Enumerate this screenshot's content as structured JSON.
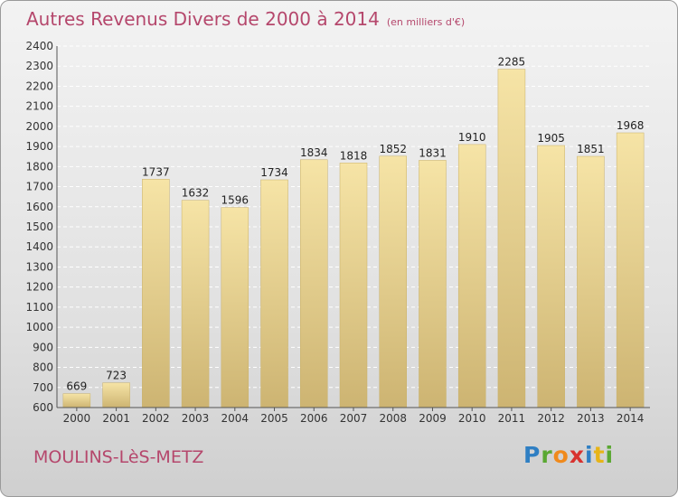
{
  "header": {
    "title": "Autres Revenus Divers de 2000 à 2014",
    "subtitle": "(en milliers d'€)"
  },
  "footer": {
    "city": "MOULINS-LèS-METZ",
    "logo_letters": [
      "P",
      "r",
      "o",
      "x",
      "i",
      "t",
      "i"
    ],
    "logo_colors": [
      "#2f7fc3",
      "#5aa832",
      "#f08a1c",
      "#d8322f",
      "#2f7fc3",
      "#e7b417",
      "#5aa832"
    ]
  },
  "colors": {
    "title": "#b5476c",
    "bar": "#ebd48e",
    "bar_edge": "#c8b069"
  },
  "chart_data": {
    "type": "bar",
    "title": "Autres Revenus Divers de 2000 à 2014",
    "xlabel": "",
    "ylabel": "",
    "categories": [
      "2000",
      "2001",
      "2002",
      "2003",
      "2004",
      "2005",
      "2006",
      "2007",
      "2008",
      "2009",
      "2010",
      "2011",
      "2012",
      "2013",
      "2014"
    ],
    "values": [
      669,
      723,
      1737,
      1632,
      1596,
      1734,
      1834,
      1818,
      1852,
      1831,
      1910,
      2285,
      1905,
      1851,
      1968
    ],
    "ylim": [
      600,
      2400
    ],
    "yticks": [
      600,
      700,
      800,
      900,
      1000,
      1100,
      1200,
      1300,
      1400,
      1500,
      1600,
      1700,
      1800,
      1900,
      2000,
      2100,
      2200,
      2300,
      2400
    ],
    "grid": true,
    "data_labels": true
  }
}
